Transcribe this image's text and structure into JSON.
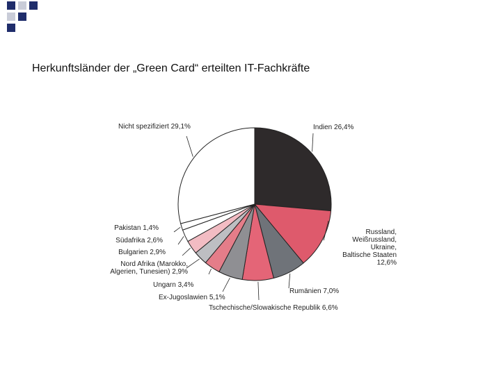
{
  "slide": {
    "title": "Herkunftsländer der „Green Card“ erteilten IT-Fachkräfte"
  },
  "colors": {
    "corner_navy": "#1f2d6b",
    "corner_gray": "#c9ccd8",
    "outline": "#222222"
  },
  "chart_data": {
    "type": "pie",
    "title": "",
    "slices": [
      {
        "label": "Indien 26,4%",
        "value": 26.4,
        "color": "#2e2a2b",
        "label_lines": [
          "Indien 26,4%"
        ]
      },
      {
        "label": "Russland, Weißrussland, Ukraine, Baltische Staaten 12,6%",
        "value": 12.6,
        "color": "#de5a6c",
        "label_lines": [
          "Russland,",
          "Weißrussland,",
          "Ukraine,",
          "Baltische Staaten",
          "12,6%"
        ]
      },
      {
        "label": "Rumänien 7,0%",
        "value": 7.0,
        "color": "#6f7379",
        "label_lines": [
          "Rumänien 7,0%"
        ]
      },
      {
        "label": "Tschechische/Slowakische Republik 6,6%",
        "value": 6.6,
        "color": "#e46577",
        "label_lines": [
          "Tschechische/Slowakische Republik 6,6%"
        ]
      },
      {
        "label": "Ex-Jugoslawien 5,1%",
        "value": 5.1,
        "color": "#8f8f93",
        "label_lines": [
          "Ex-Jugoslawien 5,1%"
        ]
      },
      {
        "label": "Ungarn 3,4%",
        "value": 3.4,
        "color": "#e47d89",
        "label_lines": [
          "Ungarn 3,4%"
        ]
      },
      {
        "label": "Nord Afrika (Marokko, Algerien, Tunesien) 2,9%",
        "value": 2.9,
        "color": "#bdbec2",
        "label_lines": [
          "Nord Afrika (Marokko,",
          "Algerien, Tunesien) 2,9%"
        ]
      },
      {
        "label": "Bulgarien 2,9%",
        "value": 2.9,
        "color": "#f2bcc3",
        "label_lines": [
          "Bulgarien 2,9%"
        ]
      },
      {
        "label": "Südafrika 2,6%",
        "value": 2.6,
        "color": "#ffffff",
        "label_lines": [
          "Südafrika 2,6%"
        ]
      },
      {
        "label": "Pakistan 1,4%",
        "value": 1.4,
        "color": "#ffffff",
        "label_lines": [
          "Pakistan 1,4%"
        ]
      },
      {
        "label": "Nicht spezifiziert 29,1%",
        "value": 29.1,
        "color": "#ffffff",
        "label_lines": [
          "Nicht spezifiziert 29,1%"
        ]
      }
    ]
  }
}
